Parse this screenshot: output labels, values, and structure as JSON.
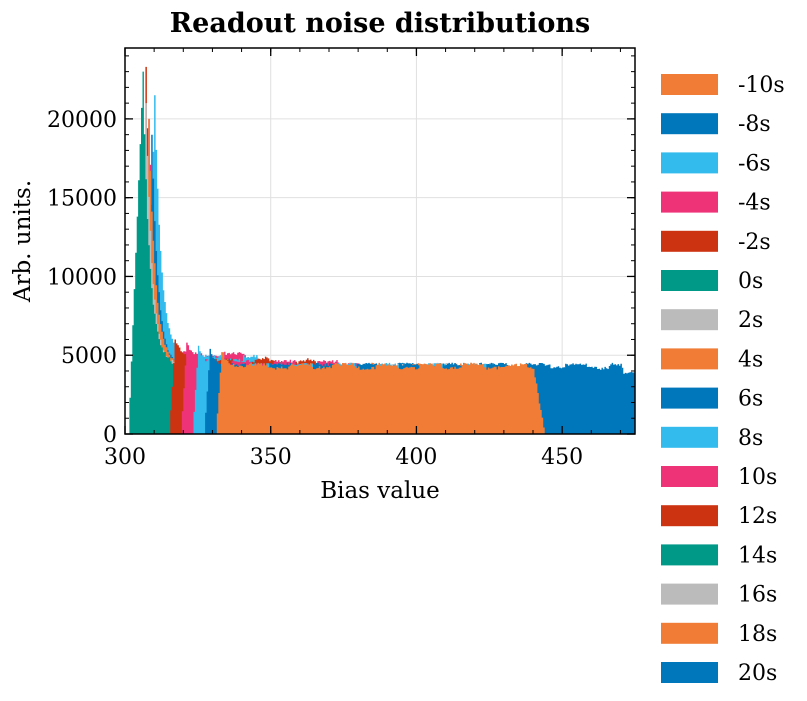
{
  "chart_data": {
    "type": "area",
    "title": "Readout noise distributions",
    "xlabel": "Bias value",
    "ylabel": "Arb. units.",
    "xlim": [
      300,
      475
    ],
    "ylim": [
      0,
      24500
    ],
    "xticks": [
      "300",
      "350",
      "400",
      "450"
    ],
    "yticks": [
      "0",
      "5000",
      "10000",
      "15000",
      "20000"
    ],
    "grid": true,
    "legend_position": "outside-right",
    "series": [
      {
        "name": "-10s",
        "color": "#F07C36",
        "start": 331,
        "peak_x": 333,
        "peak": 5200,
        "plateau": 4300,
        "end": 440
      },
      {
        "name": "-8s",
        "color": "#0077BB",
        "start": 327,
        "peak_x": 329,
        "peak": 5400,
        "plateau": 4300,
        "end": 455
      },
      {
        "name": "-6s",
        "color": "#33BBEE",
        "start": 323,
        "peak_x": 325,
        "peak": 5600,
        "plateau": 4300,
        "end": 430
      },
      {
        "name": "-4s",
        "color": "#EE3377",
        "start": 319,
        "peak_x": 321,
        "peak": 5800,
        "plateau": 4500,
        "end": 380
      },
      {
        "name": "-2s",
        "color": "#CC3311",
        "start": 315,
        "peak_x": 317,
        "peak": 6000,
        "plateau": 4600,
        "end": 365
      },
      {
        "name": "0s",
        "color": "#009988",
        "start": 301,
        "peak_x": 306,
        "peak": 23000,
        "plateau": 4400,
        "end": 360
      },
      {
        "name": "2s",
        "color": "#BBBBBB",
        "start": 303,
        "peak_x": 307,
        "peak": 21000,
        "plateau": 4300,
        "end": 420
      },
      {
        "name": "4s",
        "color": "#F07C36",
        "start": 305,
        "peak_x": 308,
        "peak": 20000,
        "plateau": 4300,
        "end": 430
      },
      {
        "name": "6s",
        "color": "#0077BB",
        "start": 307,
        "peak_x": 309,
        "peak": 19000,
        "plateau": 4300,
        "end": 470
      },
      {
        "name": "8s",
        "color": "#33BBEE",
        "start": 307,
        "peak_x": 310,
        "peak": 21500,
        "plateau": 4800,
        "end": 345
      },
      {
        "name": "10s",
        "color": "#EE3377",
        "start": 306,
        "peak_x": 308,
        "peak": 20000,
        "plateau": 5000,
        "end": 342
      },
      {
        "name": "12s",
        "color": "#CC3311",
        "start": 305,
        "peak_x": 307,
        "peak": 23300,
        "plateau": 4700,
        "end": 355
      },
      {
        "name": "14s",
        "color": "#009988",
        "start": 310,
        "peak_x": 313,
        "peak": 6500,
        "plateau": 4300,
        "end": 360
      },
      {
        "name": "16s",
        "color": "#BBBBBB",
        "start": 312,
        "peak_x": 315,
        "peak": 4600,
        "plateau": 4200,
        "end": 400
      },
      {
        "name": "18s",
        "color": "#F07C36",
        "start": 314,
        "peak_x": 317,
        "peak": 4400,
        "plateau": 4200,
        "end": 420
      },
      {
        "name": "20s",
        "color": "#0077BB",
        "start": 316,
        "peak_x": 318,
        "peak": 4200,
        "plateau": 4000,
        "end": 475
      }
    ]
  }
}
